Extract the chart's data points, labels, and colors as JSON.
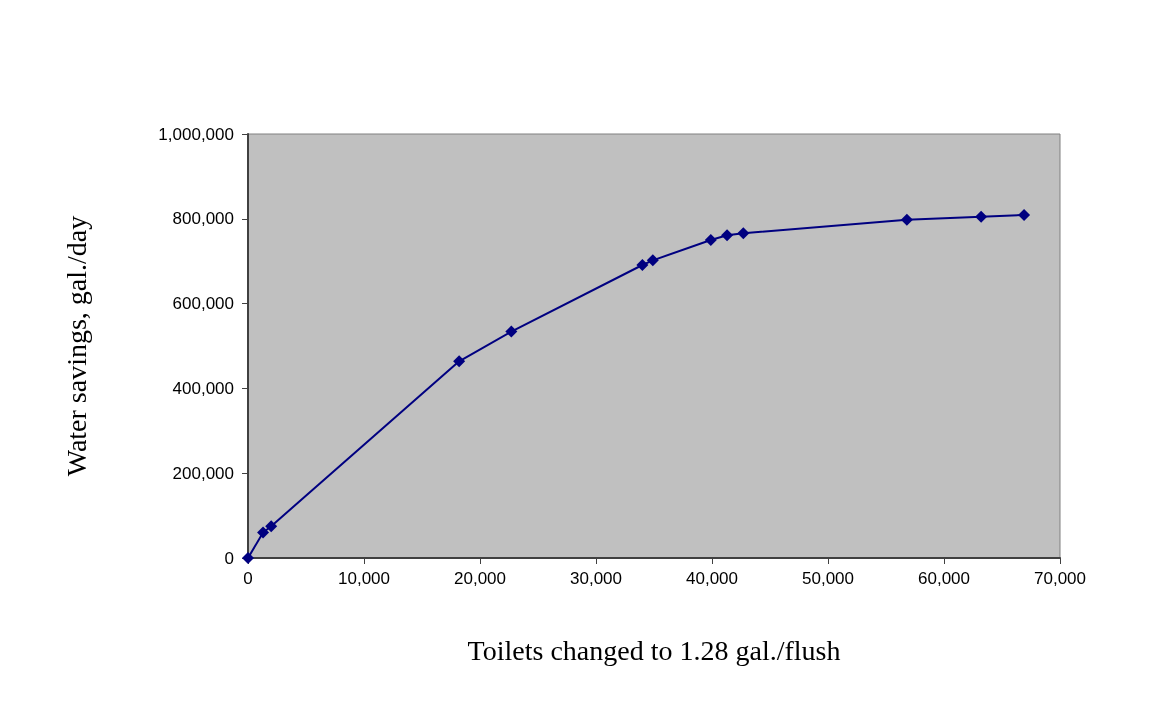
{
  "chart_data": {
    "type": "line",
    "xlabel": "Toilets changed to 1.28 gal./flush",
    "ylabel": "Water savings, gal./day",
    "x": [
      0,
      1300,
      2000,
      18200,
      22700,
      34000,
      34900,
      39900,
      41300,
      42700,
      56800,
      63200,
      66900
    ],
    "series": [
      {
        "color": "#000080",
        "values": [
          0,
          60000,
          75000,
          464000,
          534000,
          691000,
          702000,
          750000,
          761000,
          766000,
          798000,
          805000,
          809000
        ]
      }
    ],
    "xlim": [
      0,
      70000
    ],
    "xticks": [
      {
        "value": 0,
        "label": "0"
      },
      {
        "value": 10000,
        "label": "10,000"
      },
      {
        "value": 20000,
        "label": "20,000"
      },
      {
        "value": 30000,
        "label": "30,000"
      },
      {
        "value": 40000,
        "label": "40,000"
      },
      {
        "value": 50000,
        "label": "50,000"
      },
      {
        "value": 60000,
        "label": "60,000"
      },
      {
        "value": 70000,
        "label": "70,000"
      }
    ],
    "ylim": [
      0,
      1000000
    ],
    "yticks": [
      {
        "value": 0,
        "label": "0"
      },
      {
        "value": 200000,
        "label": "200,000"
      },
      {
        "value": 400000,
        "label": "400,000"
      },
      {
        "value": 600000,
        "label": "600,000"
      },
      {
        "value": 800000,
        "label": "800,000"
      },
      {
        "value": 1000000,
        "label": "1,000,000"
      }
    ],
    "grid": false,
    "marker": "diamond",
    "line_style": "solid"
  }
}
